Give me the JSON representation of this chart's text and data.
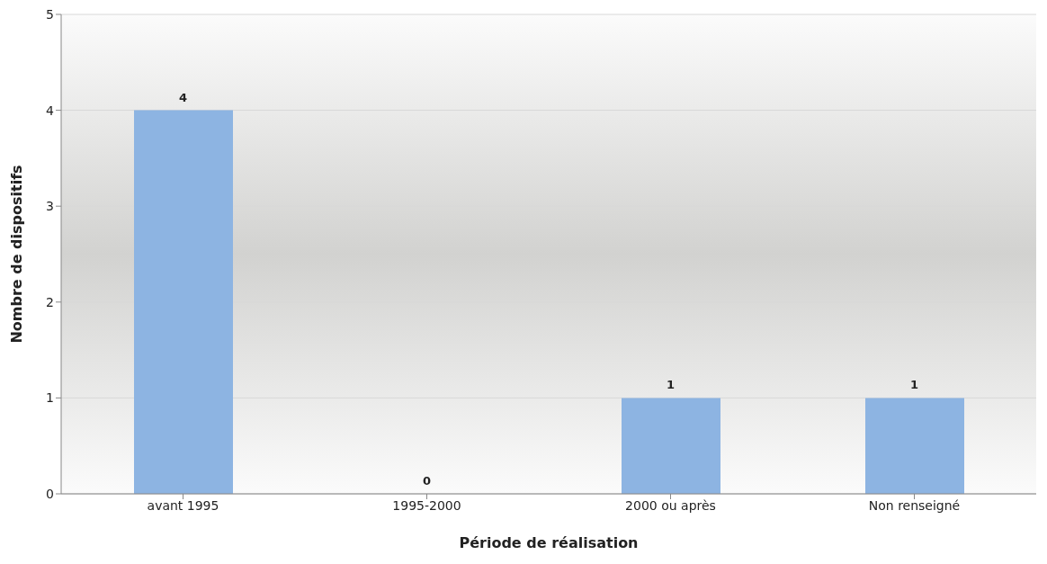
{
  "chart_data": {
    "type": "bar",
    "xlabel": "Période de réalisation",
    "ylabel": "Nombre de dispositifs",
    "categories": [
      "avant 1995",
      "1995-2000",
      "2000 ou après",
      "Non renseigné"
    ],
    "values": [
      4,
      0,
      1,
      1
    ],
    "color": "#8db4e2",
    "ylim": [
      0,
      5
    ],
    "yticks": [
      0,
      1,
      2,
      3,
      4,
      5
    ],
    "grid": "y",
    "data_labels": true
  }
}
